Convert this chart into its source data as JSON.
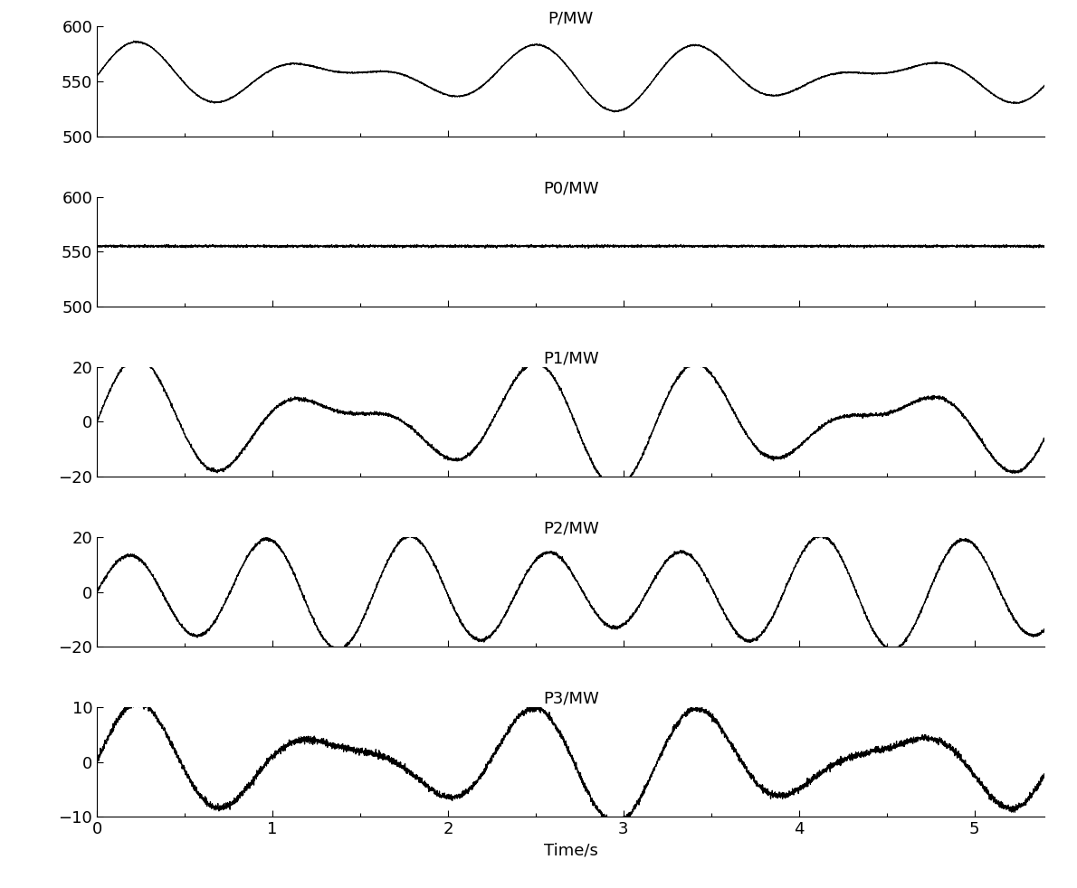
{
  "t_max": 5.4,
  "num_points": 5400,
  "panels": [
    {
      "title": "P/MW",
      "ylim": [
        500,
        600
      ],
      "yticks": [
        500,
        550,
        600
      ],
      "dc": 555,
      "components": [
        {
          "amp": 18,
          "freq": 0.93,
          "phase": 0.0
        },
        {
          "amp": 14,
          "freq": 1.27,
          "phase": 0.0
        }
      ],
      "noise": 0.3,
      "linewidth": 0.9
    },
    {
      "title": "P0/MW",
      "ylim": [
        500,
        600
      ],
      "yticks": [
        500,
        550,
        600
      ],
      "dc": 555,
      "components": [],
      "noise": 0.5,
      "linewidth": 0.9
    },
    {
      "title": "P1/MW",
      "ylim": [
        -20,
        20
      ],
      "yticks": [
        -20,
        0,
        20
      ],
      "dc": 0,
      "components": [
        {
          "amp": 14,
          "freq": 0.93,
          "phase": 0.0
        },
        {
          "amp": 10,
          "freq": 1.27,
          "phase": 0.0
        }
      ],
      "noise": 0.3,
      "linewidth": 0.9
    },
    {
      "title": "P2/MW",
      "ylim": [
        -20,
        20
      ],
      "yticks": [
        -20,
        0,
        20
      ],
      "dc": 0,
      "components": [
        {
          "amp": 17,
          "freq": 1.27,
          "phase": 0.0
        },
        {
          "amp": 4,
          "freq": 0.93,
          "phase": 3.14
        }
      ],
      "noise": 0.3,
      "linewidth": 0.9
    },
    {
      "title": "P3/MW",
      "ylim": [
        -10,
        10
      ],
      "yticks": [
        -10,
        0,
        10
      ],
      "dc": 0,
      "components": [
        {
          "amp": 7,
          "freq": 0.93,
          "phase": 0.0
        },
        {
          "amp": 4,
          "freq": 1.27,
          "phase": 0.0
        }
      ],
      "noise": 0.3,
      "linewidth": 0.9
    }
  ],
  "xlabel": "Time/s",
  "xticks": [
    0,
    1,
    2,
    3,
    4,
    5
  ],
  "background_color": "#ffffff",
  "line_color": "#000000",
  "tick_label_fontsize": 13,
  "axis_label_fontsize": 13,
  "title_fontsize": 13
}
